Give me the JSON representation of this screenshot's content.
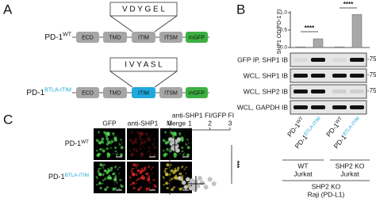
{
  "panel_labels": [
    "A",
    "B",
    "C"
  ],
  "panel_a": {
    "constructs": [
      {
        "name": "PD-1",
        "sup": "WT",
        "motif": "V D Y G E L",
        "domains": [
          "ECD",
          "TMD",
          "ITIM",
          "ITSM",
          "mGFP"
        ]
      },
      {
        "name": "PD-1",
        "sup": "BTLA-ITIM",
        "motif": "I V Y A S L",
        "domains": [
          "ECD",
          "TMD",
          "ITIM",
          "ITSM",
          "mGFP"
        ]
      }
    ]
  },
  "panel_b": {
    "blot_rows": [
      "GFP IP, SHP1 IB",
      "WCL, SHP1 IB",
      "WCL, SHP2 IB",
      "WCL, GAPDH IB"
    ],
    "markers": [
      "-75kD",
      "-75kD",
      "-75kD"
    ],
    "lanes": [
      {
        "name": "PD-1",
        "sup": "WT"
      },
      {
        "name": "PD-1",
        "sup": "BTLA-ITIM"
      },
      {
        "name": "PD-1",
        "sup": "WT"
      },
      {
        "name": "PD-1",
        "sup": "BTLA-ITIM"
      }
    ],
    "groups": [
      {
        "line1": "WT",
        "line2": "Jurkat"
      },
      {
        "line1": "SHP2 KO",
        "line2": "Jurkat"
      }
    ],
    "cell_line": [
      "SHP2 KO",
      "Raji (PD-L1)"
    ]
  },
  "panel_c": {
    "columns": [
      "GFP",
      "anti-SHP1",
      "Merge"
    ],
    "rows": [
      {
        "name": "PD-1",
        "sup": "WT"
      },
      {
        "name": "PD-1",
        "sup": "BTLA-ITIM"
      }
    ]
  },
  "chart_data": [
    {
      "type": "bar",
      "y_label": "SHP1 OD/PD-1 FI",
      "values": [
        0.02,
        0.25,
        0.02,
        0.95
      ],
      "color": "#a8a8a8",
      "ylim": [
        0,
        1
      ],
      "yticks": [
        {
          "value": 0,
          "label": "0.0"
        },
        {
          "value": 0.5,
          "label": "0.5"
        },
        {
          "value": 1,
          "label": "1.0"
        }
      ],
      "annotations": [
        "****",
        "****"
      ]
    },
    {
      "type": "strip",
      "title": "anti-SHP1 FI/GFP FI",
      "xlim": [
        0,
        3
      ],
      "xticks": [
        0,
        1,
        2,
        3
      ],
      "series": [
        {
          "values": [
            0.05,
            0.1,
            0.15,
            0.2,
            0.22,
            0.25,
            0.3,
            0.35,
            0.4,
            0.18,
            0.28,
            0.45
          ],
          "mean": 0.25,
          "sd": 0.12,
          "color": "#c4c4c4"
        },
        {
          "values": [
            0.5,
            0.7,
            0.8,
            0.9,
            1.0,
            1.05,
            1.1,
            1.2,
            1.25,
            1.3,
            1.4,
            1.5,
            1.6,
            1.8,
            2.0,
            2.2
          ],
          "mean": 1.3,
          "sd": 0.45,
          "color": "#c4c4c4"
        }
      ],
      "annotation": "***"
    }
  ]
}
